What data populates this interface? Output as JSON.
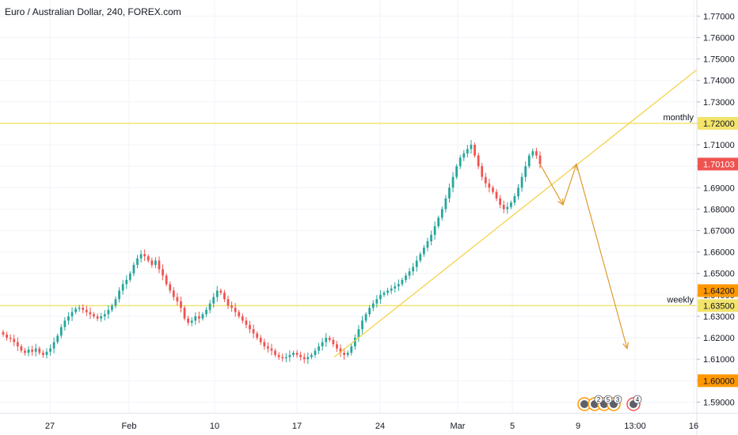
{
  "chart_data": {
    "type": "candlestick",
    "title": "Euro / Australian Dollar, 240, FOREX.com",
    "ylim": [
      1.585,
      1.7775
    ],
    "yticks": [
      "1.59000",
      "1.60000",
      "1.61000",
      "1.62000",
      "1.63000",
      "1.64000",
      "1.65000",
      "1.66000",
      "1.67000",
      "1.68000",
      "1.69000",
      "1.70000",
      "1.71000",
      "1.72000",
      "1.73000",
      "1.74000",
      "1.75000",
      "1.76000",
      "1.77000"
    ],
    "x_ticks": [
      "27",
      "Feb",
      "10",
      "17",
      "24",
      "Mar",
      "5",
      "9",
      "13:00",
      "16"
    ],
    "series": [
      {
        "values": [
          1.6215,
          1.62,
          1.6195,
          1.618,
          1.616,
          1.614,
          1.613,
          1.6145,
          1.6135,
          1.615,
          1.613,
          1.612,
          1.6135,
          1.615,
          1.618,
          1.621,
          1.625,
          1.628,
          1.63,
          1.632,
          1.6335,
          1.634,
          1.633,
          1.632,
          1.631,
          1.63,
          1.629,
          1.63,
          1.631,
          1.633,
          1.635,
          1.638,
          1.642,
          1.645,
          1.647,
          1.65,
          1.654,
          1.657,
          1.659,
          1.658,
          1.656,
          1.654,
          1.656,
          1.652,
          1.649,
          1.645,
          1.642,
          1.639,
          1.637,
          1.634,
          1.629,
          1.627,
          1.628,
          1.63,
          1.629,
          1.631,
          1.633,
          1.636,
          1.639,
          1.642,
          1.641,
          1.638,
          1.635,
          1.634,
          1.632,
          1.63,
          1.628,
          1.626,
          1.624,
          1.622,
          1.62,
          1.618,
          1.616,
          1.615,
          1.614,
          1.612,
          1.611,
          1.6105,
          1.611,
          1.612,
          1.613,
          1.612,
          1.611,
          1.61,
          1.611,
          1.612,
          1.614,
          1.616,
          1.618,
          1.62,
          1.619,
          1.617,
          1.615,
          1.613,
          1.612,
          1.613,
          1.616,
          1.62,
          1.624,
          1.628,
          1.631,
          1.634,
          1.636,
          1.638,
          1.64,
          1.641,
          1.642,
          1.643,
          1.644,
          1.645,
          1.647,
          1.649,
          1.651,
          1.653,
          1.656,
          1.659,
          1.662,
          1.665,
          1.668,
          1.672,
          1.676,
          1.68,
          1.685,
          1.69,
          1.695,
          1.7,
          1.704,
          1.706,
          1.708,
          1.71,
          1.705,
          1.7,
          1.695,
          1.692,
          1.69,
          1.688,
          1.685,
          1.682,
          1.68,
          1.681,
          1.683,
          1.686,
          1.69,
          1.695,
          1.7,
          1.705,
          1.707,
          1.705,
          1.701
        ]
      }
    ],
    "horizontal_levels": [
      {
        "price": 1.72,
        "label": "monthly",
        "tag": "1.72000"
      },
      {
        "price": 1.635,
        "label": "weekly",
        "tag": "1.63500"
      }
    ],
    "price_tags": [
      {
        "price": 1.701,
        "text": "1.70103",
        "bg": "#ef5350",
        "fg": "#ffffff"
      },
      {
        "price": 1.642,
        "text": "1.64200",
        "bg": "#ff9800",
        "fg": "#131722"
      },
      {
        "price": 1.6,
        "text": "1.60000",
        "bg": "#ff9800",
        "fg": "#131722"
      }
    ],
    "trendline": {
      "from": {
        "price": 1.611
      },
      "to": {
        "price": 1.745
      }
    },
    "projection_path": [
      1.701,
      1.682,
      1.701,
      1.615
    ],
    "event_icon_labels": [
      "2",
      "5",
      "3",
      "4"
    ],
    "colors": {
      "up": "#26a69a",
      "down": "#ef5350",
      "level": "#f2e36b",
      "trend": "#f5d24a",
      "projection": "#e09a2d",
      "grid": "#f0f3fa",
      "axis": "#e0e3eb"
    }
  }
}
